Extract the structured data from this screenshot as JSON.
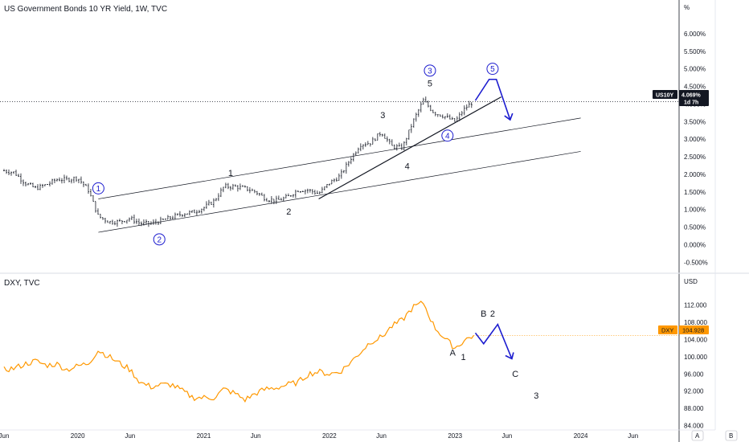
{
  "chart_data": [
    {
      "type": "ohlc",
      "title": "US Government Bonds 10 YR Yield, 1W, TVC",
      "axis_unit": "%",
      "ylim": [
        -0.7,
        6.5
      ],
      "y_ticks": [
        "6.000%",
        "5.500%",
        "5.000%",
        "4.500%",
        "4.000%",
        "3.500%",
        "3.000%",
        "2.500%",
        "2.000%",
        "1.500%",
        "1.000%",
        "0.500%",
        "0.000%",
        "-0.500%"
      ],
      "y_tick_values": [
        6,
        5.5,
        5,
        4.5,
        4,
        3.5,
        3,
        2.5,
        2,
        1.5,
        1,
        0.5,
        0,
        -0.5
      ],
      "last_price_label": "US10Y",
      "last_price": "4.069%",
      "countdown": "1d 7h",
      "last_value": 4.069,
      "series_points": [
        [
          "2019-06-01",
          2.1
        ],
        [
          "2019-07-01",
          2.05
        ],
        [
          "2019-08-01",
          1.75
        ],
        [
          "2019-09-01",
          1.6
        ],
        [
          "2019-10-01",
          1.7
        ],
        [
          "2019-11-01",
          1.85
        ],
        [
          "2019-12-01",
          1.85
        ],
        [
          "2020-01-01",
          1.9
        ],
        [
          "2020-02-01",
          1.55
        ],
        [
          "2020-03-01",
          0.8
        ],
        [
          "2020-04-01",
          0.65
        ],
        [
          "2020-05-01",
          0.65
        ],
        [
          "2020-06-01",
          0.75
        ],
        [
          "2020-07-01",
          0.6
        ],
        [
          "2020-08-01",
          0.6
        ],
        [
          "2020-09-01",
          0.68
        ],
        [
          "2020-10-01",
          0.78
        ],
        [
          "2020-11-01",
          0.88
        ],
        [
          "2020-12-01",
          0.92
        ],
        [
          "2021-01-01",
          1.05
        ],
        [
          "2021-02-01",
          1.25
        ],
        [
          "2021-03-01",
          1.65
        ],
        [
          "2021-04-01",
          1.65
        ],
        [
          "2021-05-01",
          1.6
        ],
        [
          "2021-06-01",
          1.5
        ],
        [
          "2021-07-01",
          1.3
        ],
        [
          "2021-08-01",
          1.25
        ],
        [
          "2021-09-01",
          1.35
        ],
        [
          "2021-10-01",
          1.55
        ],
        [
          "2021-11-01",
          1.55
        ],
        [
          "2021-12-01",
          1.45
        ],
        [
          "2022-01-01",
          1.75
        ],
        [
          "2022-02-01",
          1.95
        ],
        [
          "2022-03-01",
          2.4
        ],
        [
          "2022-04-01",
          2.85
        ],
        [
          "2022-05-01",
          2.9
        ],
        [
          "2022-06-01",
          3.2
        ],
        [
          "2022-07-01",
          2.8
        ],
        [
          "2022-08-01",
          2.75
        ],
        [
          "2022-09-01",
          3.5
        ],
        [
          "2022-10-01",
          4.1
        ],
        [
          "2022-11-01",
          3.75
        ],
        [
          "2022-12-01",
          3.65
        ],
        [
          "2023-01-01",
          3.5
        ],
        [
          "2023-02-01",
          3.9
        ],
        [
          "2023-02-24",
          4.069
        ]
      ],
      "wave_labels": [
        {
          "text": "1",
          "x": "2021-03-20",
          "y": 1.95
        },
        {
          "text": "2",
          "x": "2021-09-05",
          "y": 0.85
        },
        {
          "text": "3",
          "x": "2022-06-05",
          "y": 3.6
        },
        {
          "text": "4",
          "x": "2022-08-15",
          "y": 2.15
        },
        {
          "text": "5",
          "x": "2022-10-20",
          "y": 4.5
        }
      ],
      "circled_labels": [
        {
          "text": "1",
          "x": "2020-03-01",
          "y": 1.6
        },
        {
          "text": "2",
          "x": "2020-08-25",
          "y": 0.15
        },
        {
          "text": "3",
          "x": "2022-10-20",
          "y": 4.95
        },
        {
          "text": "4",
          "x": "2022-12-10",
          "y": 3.1
        },
        {
          "text": "5",
          "x": "2023-04-20",
          "y": 5.0
        }
      ],
      "channel_lines": [
        [
          [
            "2020-03-01",
            1.3
          ],
          [
            "2024-01-01",
            3.6
          ]
        ],
        [
          [
            "2020-03-01",
            0.35
          ],
          [
            "2024-01-01",
            2.65
          ]
        ]
      ],
      "trend_line": [
        [
          "2021-12-01",
          1.3
        ],
        [
          "2023-05-15",
          4.2
        ]
      ],
      "projection": [
        [
          "2023-03-01",
          4.1
        ],
        [
          "2023-04-10",
          4.7
        ],
        [
          "2023-05-01",
          4.7
        ],
        [
          "2023-06-10",
          3.55
        ]
      ],
      "colors": {
        "bars": "#131722",
        "projection": "#1c1ccf",
        "badge": "#131722"
      }
    },
    {
      "type": "line",
      "title": "DXY, TVC",
      "axis_unit": "USD",
      "ylim": [
        83,
        116
      ],
      "y_ticks": [
        "112.000",
        "108.000",
        "104.000",
        "100.000",
        "96.000",
        "92.000",
        "88.000",
        "84.000"
      ],
      "y_tick_values": [
        112,
        108,
        104,
        100,
        96,
        92,
        88,
        84
      ],
      "last_price_label": "DXY",
      "last_price": "104.928",
      "last_value": 104.928,
      "series_points": [
        [
          "2019-06-01",
          97.0
        ],
        [
          "2019-07-01",
          97.3
        ],
        [
          "2019-08-01",
          98.3
        ],
        [
          "2019-09-01",
          99.0
        ],
        [
          "2019-10-01",
          98.0
        ],
        [
          "2019-11-01",
          98.3
        ],
        [
          "2019-12-01",
          97.0
        ],
        [
          "2020-01-01",
          97.8
        ],
        [
          "2020-02-01",
          98.5
        ],
        [
          "2020-03-01",
          101.5
        ],
        [
          "2020-04-01",
          100.0
        ],
        [
          "2020-05-01",
          98.5
        ],
        [
          "2020-06-01",
          97.0
        ],
        [
          "2020-07-01",
          94.0
        ],
        [
          "2020-08-01",
          93.0
        ],
        [
          "2020-09-01",
          93.5
        ],
        [
          "2020-10-01",
          93.5
        ],
        [
          "2020-11-01",
          92.0
        ],
        [
          "2020-12-01",
          90.5
        ],
        [
          "2021-01-01",
          90.5
        ],
        [
          "2021-02-01",
          90.5
        ],
        [
          "2021-03-01",
          92.5
        ],
        [
          "2021-04-01",
          91.5
        ],
        [
          "2021-05-01",
          90.0
        ],
        [
          "2021-06-01",
          91.5
        ],
        [
          "2021-07-01",
          92.5
        ],
        [
          "2021-08-01",
          92.8
        ],
        [
          "2021-09-01",
          93.5
        ],
        [
          "2021-10-01",
          94.0
        ],
        [
          "2021-11-01",
          96.0
        ],
        [
          "2021-12-01",
          96.5
        ],
        [
          "2022-01-01",
          96.0
        ],
        [
          "2022-02-01",
          96.5
        ],
        [
          "2022-03-01",
          98.5
        ],
        [
          "2022-04-01",
          101.0
        ],
        [
          "2022-05-01",
          103.5
        ],
        [
          "2022-06-01",
          104.5
        ],
        [
          "2022-07-01",
          107.0
        ],
        [
          "2022-08-01",
          108.5
        ],
        [
          "2022-09-01",
          111.5
        ],
        [
          "2022-10-01",
          112.5
        ],
        [
          "2022-11-01",
          107.0
        ],
        [
          "2022-12-01",
          104.3
        ],
        [
          "2023-01-01",
          102.0
        ],
        [
          "2023-02-01",
          104.0
        ],
        [
          "2023-02-24",
          104.928
        ]
      ],
      "wave_labels": [
        {
          "text": "A",
          "x": "2022-12-25",
          "y": 100.2
        },
        {
          "text": "1",
          "x": "2023-01-25",
          "y": 99.2
        },
        {
          "text": "B",
          "x": "2023-03-25",
          "y": 109.3
        },
        {
          "text": "2",
          "x": "2023-04-20",
          "y": 109.3
        },
        {
          "text": "C",
          "x": "2023-06-25",
          "y": 95.3
        },
        {
          "text": "3",
          "x": "2023-08-25",
          "y": 90.3
        }
      ],
      "projection": [
        [
          "2023-03-01",
          105.5
        ],
        [
          "2023-03-25",
          103.0
        ],
        [
          "2023-05-05",
          107.5
        ],
        [
          "2023-06-15",
          99.5
        ]
      ],
      "colors": {
        "line": "#ff9800",
        "projection": "#1c1ccf",
        "badge": "#ff9800"
      }
    }
  ],
  "x_axis": {
    "range": [
      "2019-06-01",
      "2024-10-01"
    ],
    "ticks": [
      {
        "label": "Jun",
        "date": "2019-06-01"
      },
      {
        "label": "2020",
        "date": "2020-01-01"
      },
      {
        "label": "Jun",
        "date": "2020-06-01"
      },
      {
        "label": "2021",
        "date": "2021-01-01"
      },
      {
        "label": "Jun",
        "date": "2021-06-01"
      },
      {
        "label": "2022",
        "date": "2022-01-01"
      },
      {
        "label": "Jun",
        "date": "2022-06-01"
      },
      {
        "label": "2023",
        "date": "2023-01-01"
      },
      {
        "label": "Jun",
        "date": "2023-06-01"
      },
      {
        "label": "2024",
        "date": "2024-01-01"
      },
      {
        "label": "Jun",
        "date": "2024-06-01"
      }
    ]
  },
  "buttons": {
    "auto": "A",
    "scale": "B"
  }
}
